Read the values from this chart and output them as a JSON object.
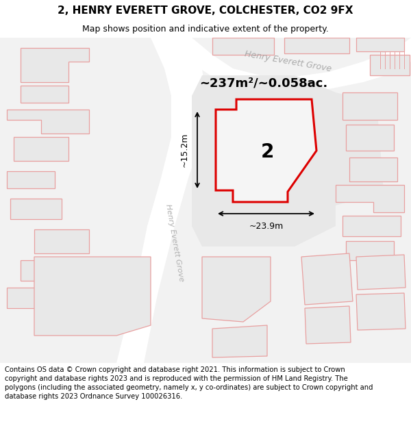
{
  "title": "2, HENRY EVERETT GROVE, COLCHESTER, CO2 9FX",
  "subtitle": "Map shows position and indicative extent of the property.",
  "footer": "Contains OS data © Crown copyright and database right 2021. This information is subject to Crown copyright and database rights 2023 and is reproduced with the permission of HM Land Registry. The polygons (including the associated geometry, namely x, y co-ordinates) are subject to Crown copyright and database rights 2023 Ordnance Survey 100026316.",
  "area_label": "~237m²/~0.058ac.",
  "width_label": "~23.9m",
  "height_label": "~15.2m",
  "property_number": "2",
  "road_label_top": "Henry Everett Grove",
  "road_label_left": "Henry Everett Grove",
  "highlight_color": "#dd0000",
  "pink_stroke": "#e8a0a0",
  "map_bg": "#f7f7f7",
  "bldg_fill": "#e8e8e8",
  "road_fill": "#ebebeb",
  "title_fontsize": 11,
  "subtitle_fontsize": 9,
  "footer_fontsize": 7.2
}
